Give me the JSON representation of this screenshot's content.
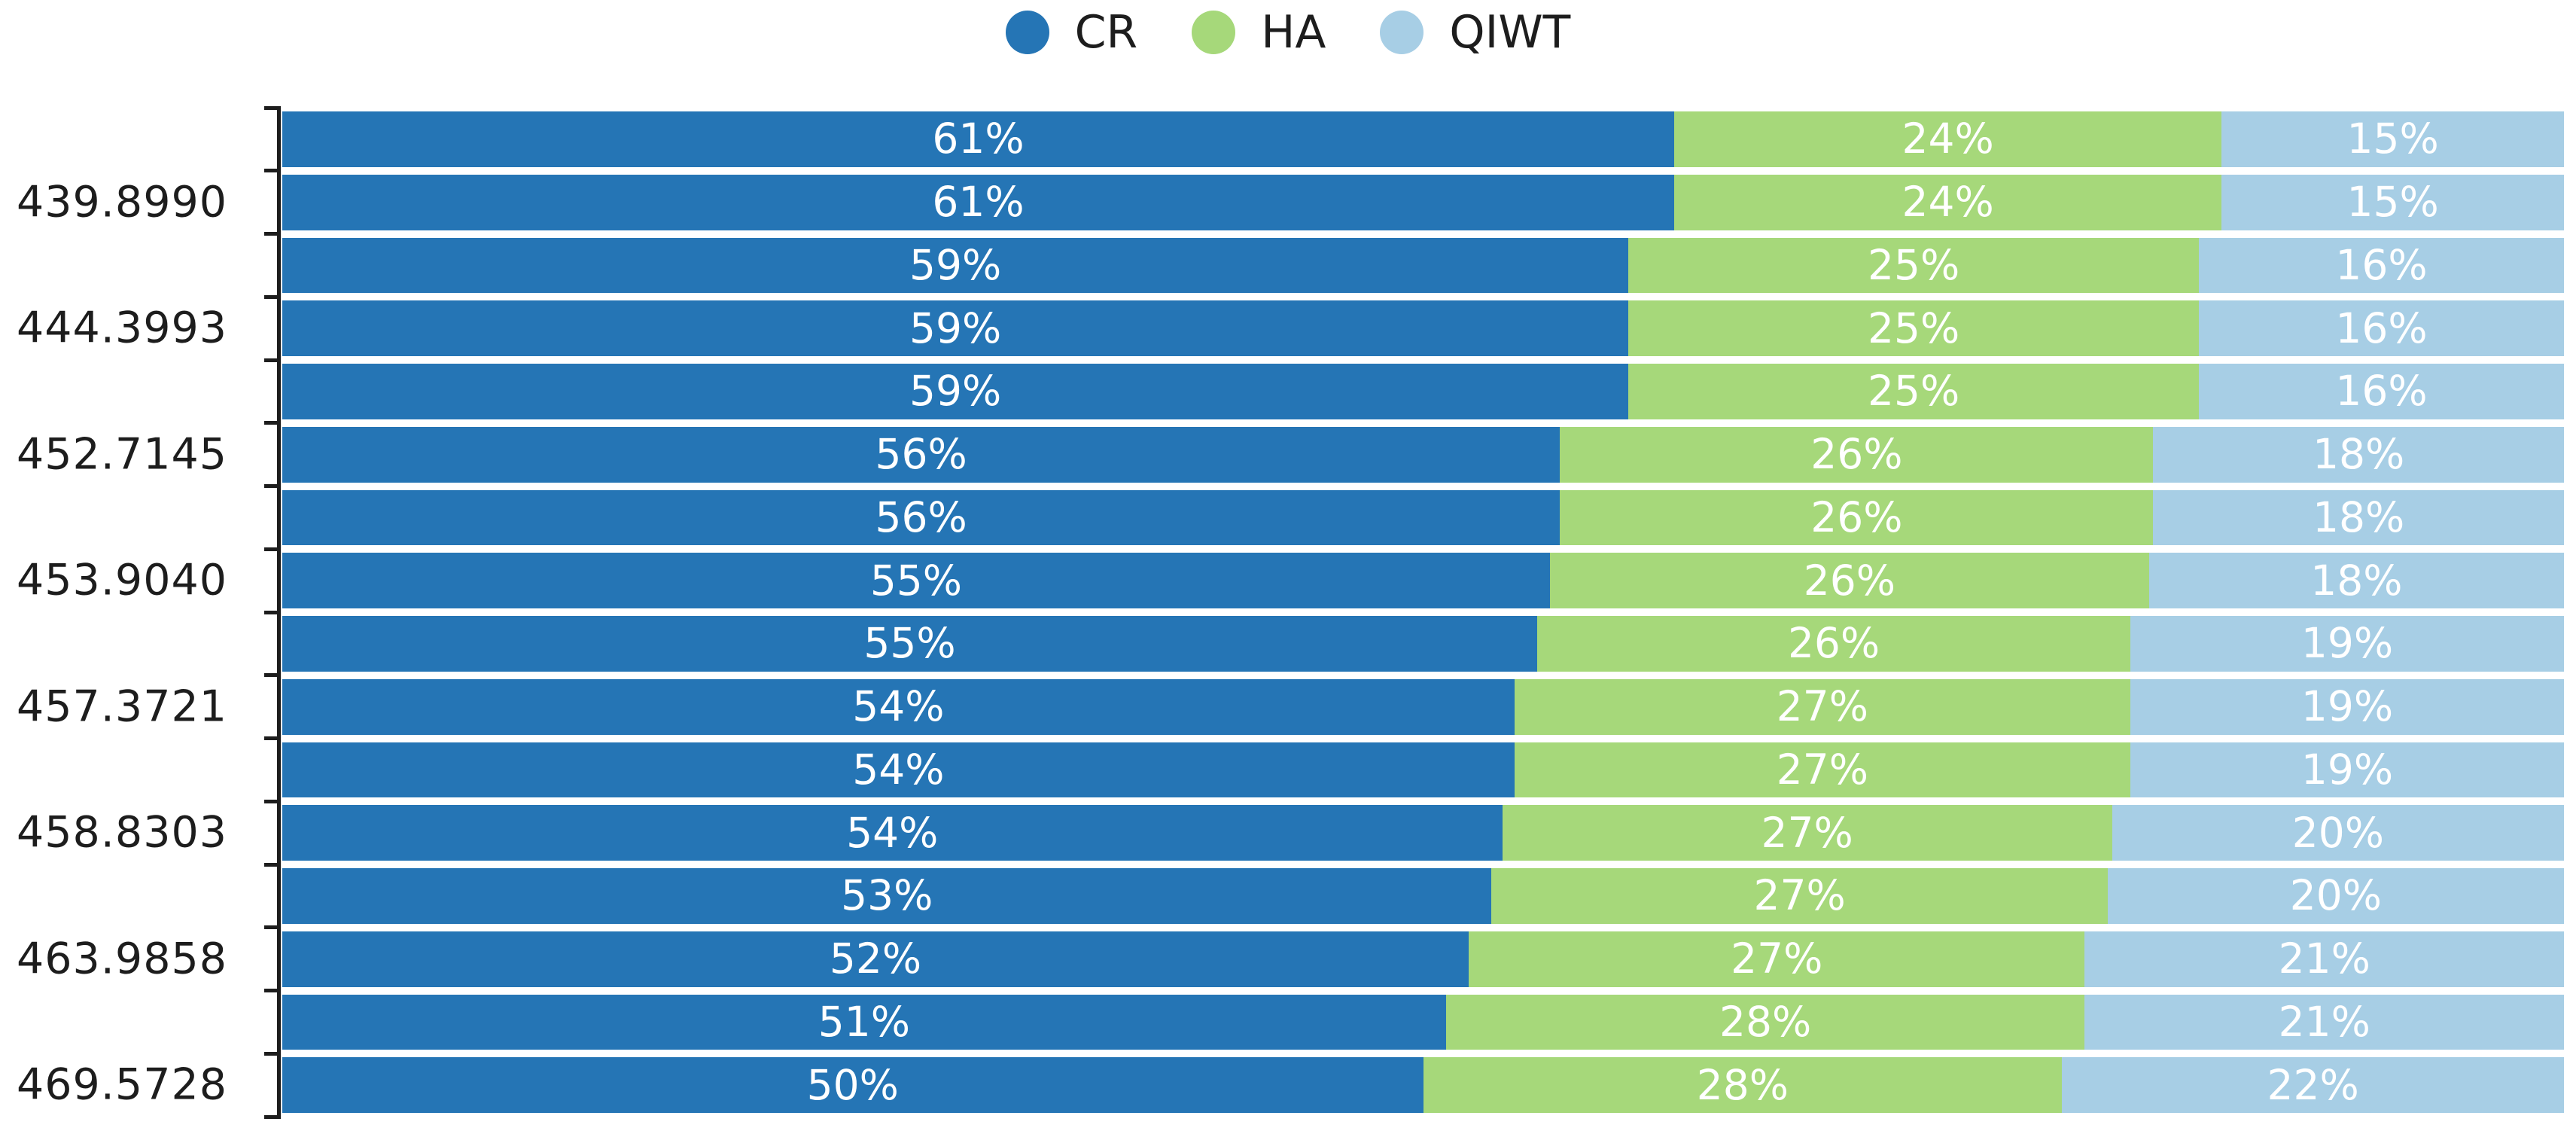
{
  "chart_data": {
    "type": "bar",
    "orientation": "horizontal",
    "stacked": true,
    "percent_stacked": true,
    "title": "",
    "xlabel": "",
    "ylabel": "",
    "grid": false,
    "legend_position": "top-center",
    "n_bars": 16,
    "y_tick_labels": [
      "439.8990",
      "444.3993",
      "452.7145",
      "453.9040",
      "457.3721",
      "458.8303",
      "463.9858",
      "469.5728"
    ],
    "y_tick_label_every_n_bars": 2,
    "value_suffix": "%",
    "series": [
      {
        "name": "CR",
        "color": "#2575b5",
        "values": [
          61,
          61,
          59,
          59,
          59,
          56,
          56,
          55,
          55,
          54,
          54,
          54,
          53,
          52,
          51,
          50
        ]
      },
      {
        "name": "HA",
        "color": "#a6d87a",
        "values": [
          24,
          24,
          25,
          25,
          25,
          26,
          26,
          26,
          26,
          27,
          27,
          27,
          27,
          27,
          28,
          28
        ]
      },
      {
        "name": "QIWT",
        "color": "#a7cee5",
        "values": [
          15,
          15,
          16,
          16,
          16,
          18,
          18,
          18,
          19,
          19,
          19,
          20,
          20,
          21,
          21,
          22
        ]
      }
    ],
    "colors": {
      "axis": "#1d1d1d",
      "tick": "#1d1d1d",
      "axis_text": "#1d1d1d",
      "legend_text": "#1d1d1d",
      "bar_label_text": "#ffffff",
      "background": "#ffffff"
    }
  }
}
